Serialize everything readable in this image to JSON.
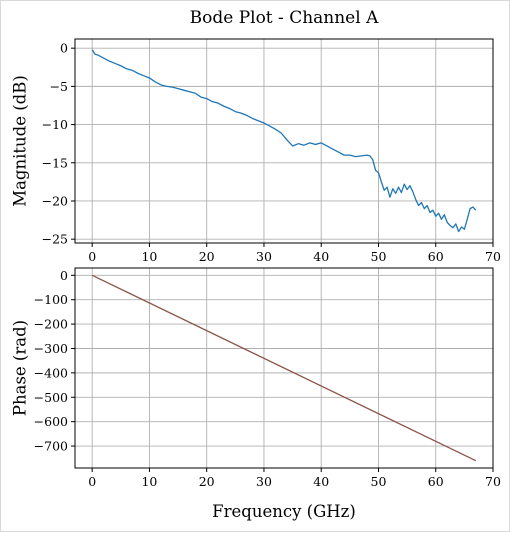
{
  "chart_data": {
    "type": "line",
    "title": "Bode Plot - Channel A",
    "xlabel": "Frequency (GHz)",
    "xlim": [
      -3,
      70
    ],
    "xticks": [
      0,
      10,
      20,
      30,
      40,
      50,
      60,
      70
    ],
    "grid": true,
    "colors": {
      "magnitude": "#1f77b4",
      "phase": "#8c564b",
      "grid": "#b0b0b0"
    },
    "panels": [
      {
        "ylabel": "Magnitude (dB)",
        "ylim": [
          -25.5,
          1.2
        ],
        "yticks": [
          0,
          -5,
          -10,
          -15,
          -20,
          -25
        ],
        "yticklabels": [
          "0",
          "−5",
          "−10",
          "−15",
          "−20",
          "−25"
        ],
        "series": [
          {
            "x": [
              0,
              0.5,
              1,
              2,
              3,
              4,
              5,
              6,
              7,
              8,
              9,
              10,
              11,
              12,
              13,
              14,
              15,
              16,
              17,
              18,
              19,
              20,
              21,
              22,
              23,
              24,
              25,
              26,
              27,
              28,
              29,
              30,
              31,
              32,
              33,
              34,
              35,
              36,
              37,
              38,
              39,
              40,
              41,
              42,
              43,
              44,
              45,
              46,
              47,
              48,
              48.5,
              49,
              49.5,
              50,
              50.5,
              51,
              51.5,
              52,
              52.5,
              53,
              53.5,
              54,
              54.5,
              55,
              55.5,
              56,
              56.5,
              57,
              57.5,
              58,
              58.5,
              59,
              59.5,
              60,
              60.5,
              61,
              61.5,
              62,
              62.5,
              63,
              63.5,
              64,
              64.5,
              65,
              65.5,
              66,
              66.5,
              67
            ],
            "y": [
              -0.2,
              -0.8,
              -0.9,
              -1.3,
              -1.7,
              -2.0,
              -2.3,
              -2.7,
              -2.9,
              -3.3,
              -3.6,
              -3.9,
              -4.4,
              -4.8,
              -5.0,
              -5.1,
              -5.3,
              -5.5,
              -5.7,
              -5.9,
              -6.4,
              -6.6,
              -7.0,
              -7.2,
              -7.6,
              -7.9,
              -8.3,
              -8.5,
              -8.8,
              -9.2,
              -9.5,
              -9.8,
              -10.2,
              -10.6,
              -11.1,
              -12.0,
              -12.8,
              -12.5,
              -12.7,
              -12.4,
              -12.6,
              -12.4,
              -12.8,
              -13.2,
              -13.6,
              -14.0,
              -14.0,
              -14.2,
              -14.1,
              -14.0,
              -14.1,
              -14.6,
              -16.0,
              -16.3,
              -17.5,
              -18.6,
              -18.2,
              -19.5,
              -18.4,
              -19.0,
              -18.2,
              -18.9,
              -17.8,
              -18.5,
              -18.0,
              -18.8,
              -19.8,
              -20.6,
              -20.2,
              -21.0,
              -20.6,
              -21.5,
              -21.2,
              -22.0,
              -21.6,
              -22.4,
              -21.8,
              -22.8,
              -23.2,
              -23.5,
              -23.0,
              -24.0,
              -23.4,
              -23.7,
              -22.4,
              -21.0,
              -20.8,
              -21.2
            ]
          }
        ]
      },
      {
        "ylabel": "Phase (rad)",
        "ylim": [
          -790,
          30
        ],
        "yticks": [
          0,
          -100,
          -200,
          -300,
          -400,
          -500,
          -600,
          -700
        ],
        "yticklabels": [
          "0",
          "−100",
          "−200",
          "−300",
          "−400",
          "−500",
          "−600",
          "−700"
        ],
        "series": [
          {
            "x": [
              0,
              67
            ],
            "y": [
              0,
              -760
            ]
          }
        ]
      }
    ]
  }
}
